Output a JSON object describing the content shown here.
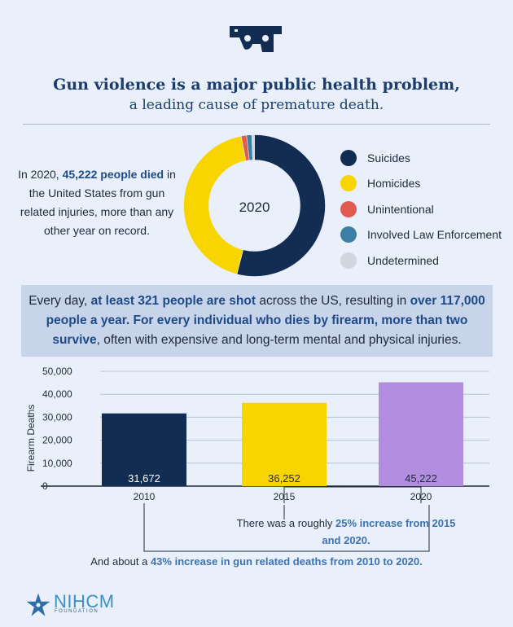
{
  "header": {
    "title": "Gun violence is a major public health problem,",
    "subtitle": "a leading cause of premature death."
  },
  "intro": {
    "pre": "In 2020, ",
    "highlight": "45,222 people died",
    "post": " in the United States from gun related injuries, more than any other year on record."
  },
  "donut": {
    "center_label": "2020",
    "slices": [
      {
        "label": "Suicides",
        "value": 54.0,
        "color": "#132c52"
      },
      {
        "label": "Homicides",
        "value": 43.0,
        "color": "#f9d500"
      },
      {
        "label": "Unintentional",
        "value": 1.2,
        "color": "#e05a4f"
      },
      {
        "label": "Involved Law Enforcement",
        "value": 1.2,
        "color": "#3b80a4"
      },
      {
        "label": "Undetermined",
        "value": 0.6,
        "color": "#d0d5de"
      }
    ]
  },
  "banner": {
    "p1": "Every day, ",
    "h1": "at least 321 people are shot",
    "p2": " across the US, resulting in ",
    "h2": "over 117,000 people a year. For every individual who dies by firearm, more than two survive",
    "p3": ", often with expensive and long-term mental and physical injuries."
  },
  "chart_data": {
    "type": "bar",
    "categories": [
      "2010",
      "2015",
      "2020"
    ],
    "values": [
      31672,
      36252,
      45222
    ],
    "value_labels": [
      "31,672",
      "36,252",
      "45,222"
    ],
    "colors": [
      "#132c52",
      "#f9d500",
      "#b38ee0"
    ],
    "label_colors": [
      "#ffffff",
      "#1e2a3a",
      "#1e2a3a"
    ],
    "ylabel": "Firearm Deaths",
    "ylim": [
      0,
      50000
    ],
    "yticks": [
      0,
      10000,
      20000,
      30000,
      40000,
      50000
    ],
    "ytick_labels": [
      "0",
      "10,000",
      "20,000",
      "30,000",
      "40,000",
      "50,000"
    ],
    "grid": true
  },
  "notes": {
    "n1_pre": "There was a roughly ",
    "n1_hl": "25% increase from 2015 and 2020.",
    "n2_pre": "And about a ",
    "n2_hl": "43% increase in gun related deaths from 2010 to 2020."
  },
  "logo": {
    "name": "NIHCM",
    "sub": "FOUNDATION"
  },
  "icons": [
    "gun-icon",
    "star-logo-icon"
  ]
}
